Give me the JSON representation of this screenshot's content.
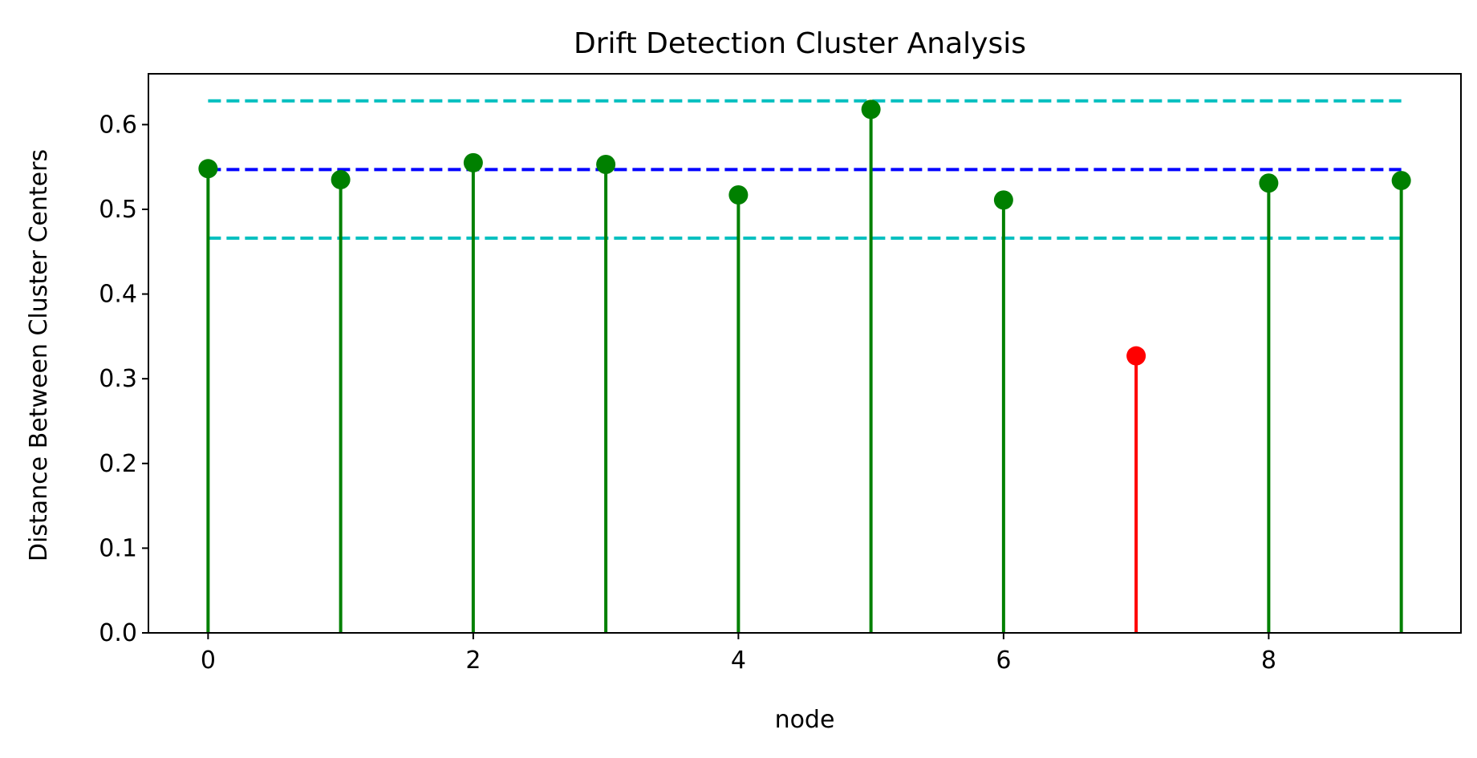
{
  "chart_data": {
    "type": "stem",
    "title": "Drift Detection Cluster Analysis",
    "xlabel": "node",
    "ylabel": "Distance Between Cluster Centers",
    "xlim": [
      -0.45,
      9.45
    ],
    "ylim": [
      0.0,
      0.66
    ],
    "xticks": [
      0,
      2,
      4,
      6,
      8
    ],
    "yticks": [
      0.0,
      0.1,
      0.2,
      0.3,
      0.4,
      0.5,
      0.6
    ],
    "ytick_labels": [
      "0.0",
      "0.1",
      "0.2",
      "0.3",
      "0.4",
      "0.5",
      "0.6"
    ],
    "x": [
      0,
      1,
      2,
      3,
      4,
      5,
      6,
      7,
      8,
      9
    ],
    "values": [
      0.548,
      0.535,
      0.555,
      0.553,
      0.517,
      0.618,
      0.511,
      0.327,
      0.531,
      0.534
    ],
    "flagged": [
      false,
      false,
      false,
      false,
      false,
      false,
      false,
      true,
      false,
      false
    ],
    "colors": {
      "normal": "#008000",
      "flagged": "#ff0000",
      "mean_line": "#0000ff",
      "bound_line": "#00bfbf"
    },
    "reference_lines": [
      {
        "kind": "upper-bound",
        "y": 0.628,
        "x_start": 0,
        "x_end": 9
      },
      {
        "kind": "mean",
        "y": 0.547,
        "x_start": 0,
        "x_end": 9
      },
      {
        "kind": "lower-bound",
        "y": 0.466,
        "x_start": 0,
        "x_end": 9
      }
    ],
    "grid": false,
    "legend": "none"
  }
}
